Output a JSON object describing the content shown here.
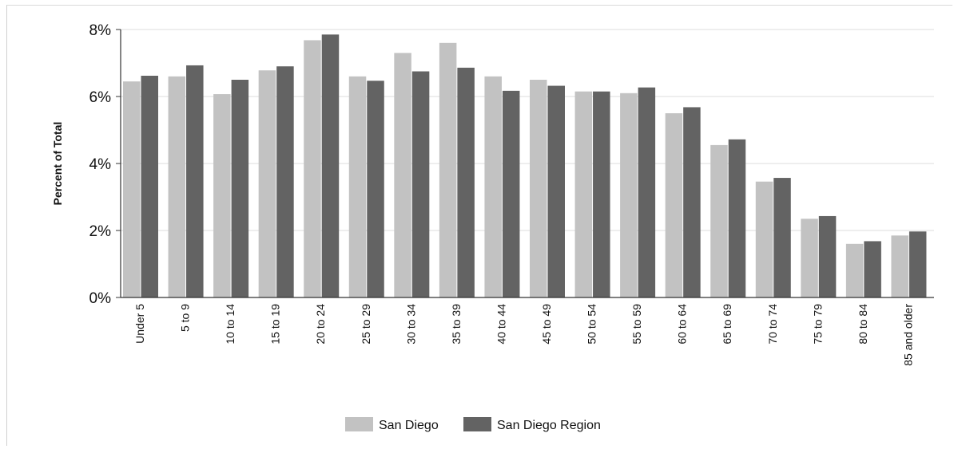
{
  "chart_data": {
    "type": "bar",
    "ylabel": "Percent of Total",
    "xlabel": "",
    "ylim": [
      0,
      8
    ],
    "yticks": [
      "0%",
      "2%",
      "4%",
      "6%",
      "8%"
    ],
    "grid": true,
    "legend_position": "bottom",
    "categories": [
      "Under 5",
      "5 to 9",
      "10 to 14",
      "15 to 19",
      "20 to 24",
      "25 to 29",
      "30 to 34",
      "35 to 39",
      "40 to 44",
      "45 to 49",
      "50 to 54",
      "55 to 59",
      "60 to 64",
      "65 to 69",
      "70 to 74",
      "75 to 79",
      "80 to 84",
      "85 and older"
    ],
    "series": [
      {
        "name": "San Diego",
        "color": "#c2c2c2",
        "values": [
          6.45,
          6.6,
          6.07,
          6.78,
          7.68,
          6.6,
          7.3,
          7.6,
          6.6,
          6.5,
          6.15,
          6.1,
          5.5,
          4.55,
          3.46,
          2.35,
          1.6,
          1.85
        ]
      },
      {
        "name": "San Diego Region",
        "color": "#636363",
        "values": [
          6.62,
          6.93,
          6.5,
          6.9,
          7.85,
          6.47,
          6.75,
          6.86,
          6.17,
          6.32,
          6.15,
          6.27,
          5.68,
          4.72,
          3.57,
          2.43,
          1.68,
          1.97
        ]
      }
    ]
  }
}
